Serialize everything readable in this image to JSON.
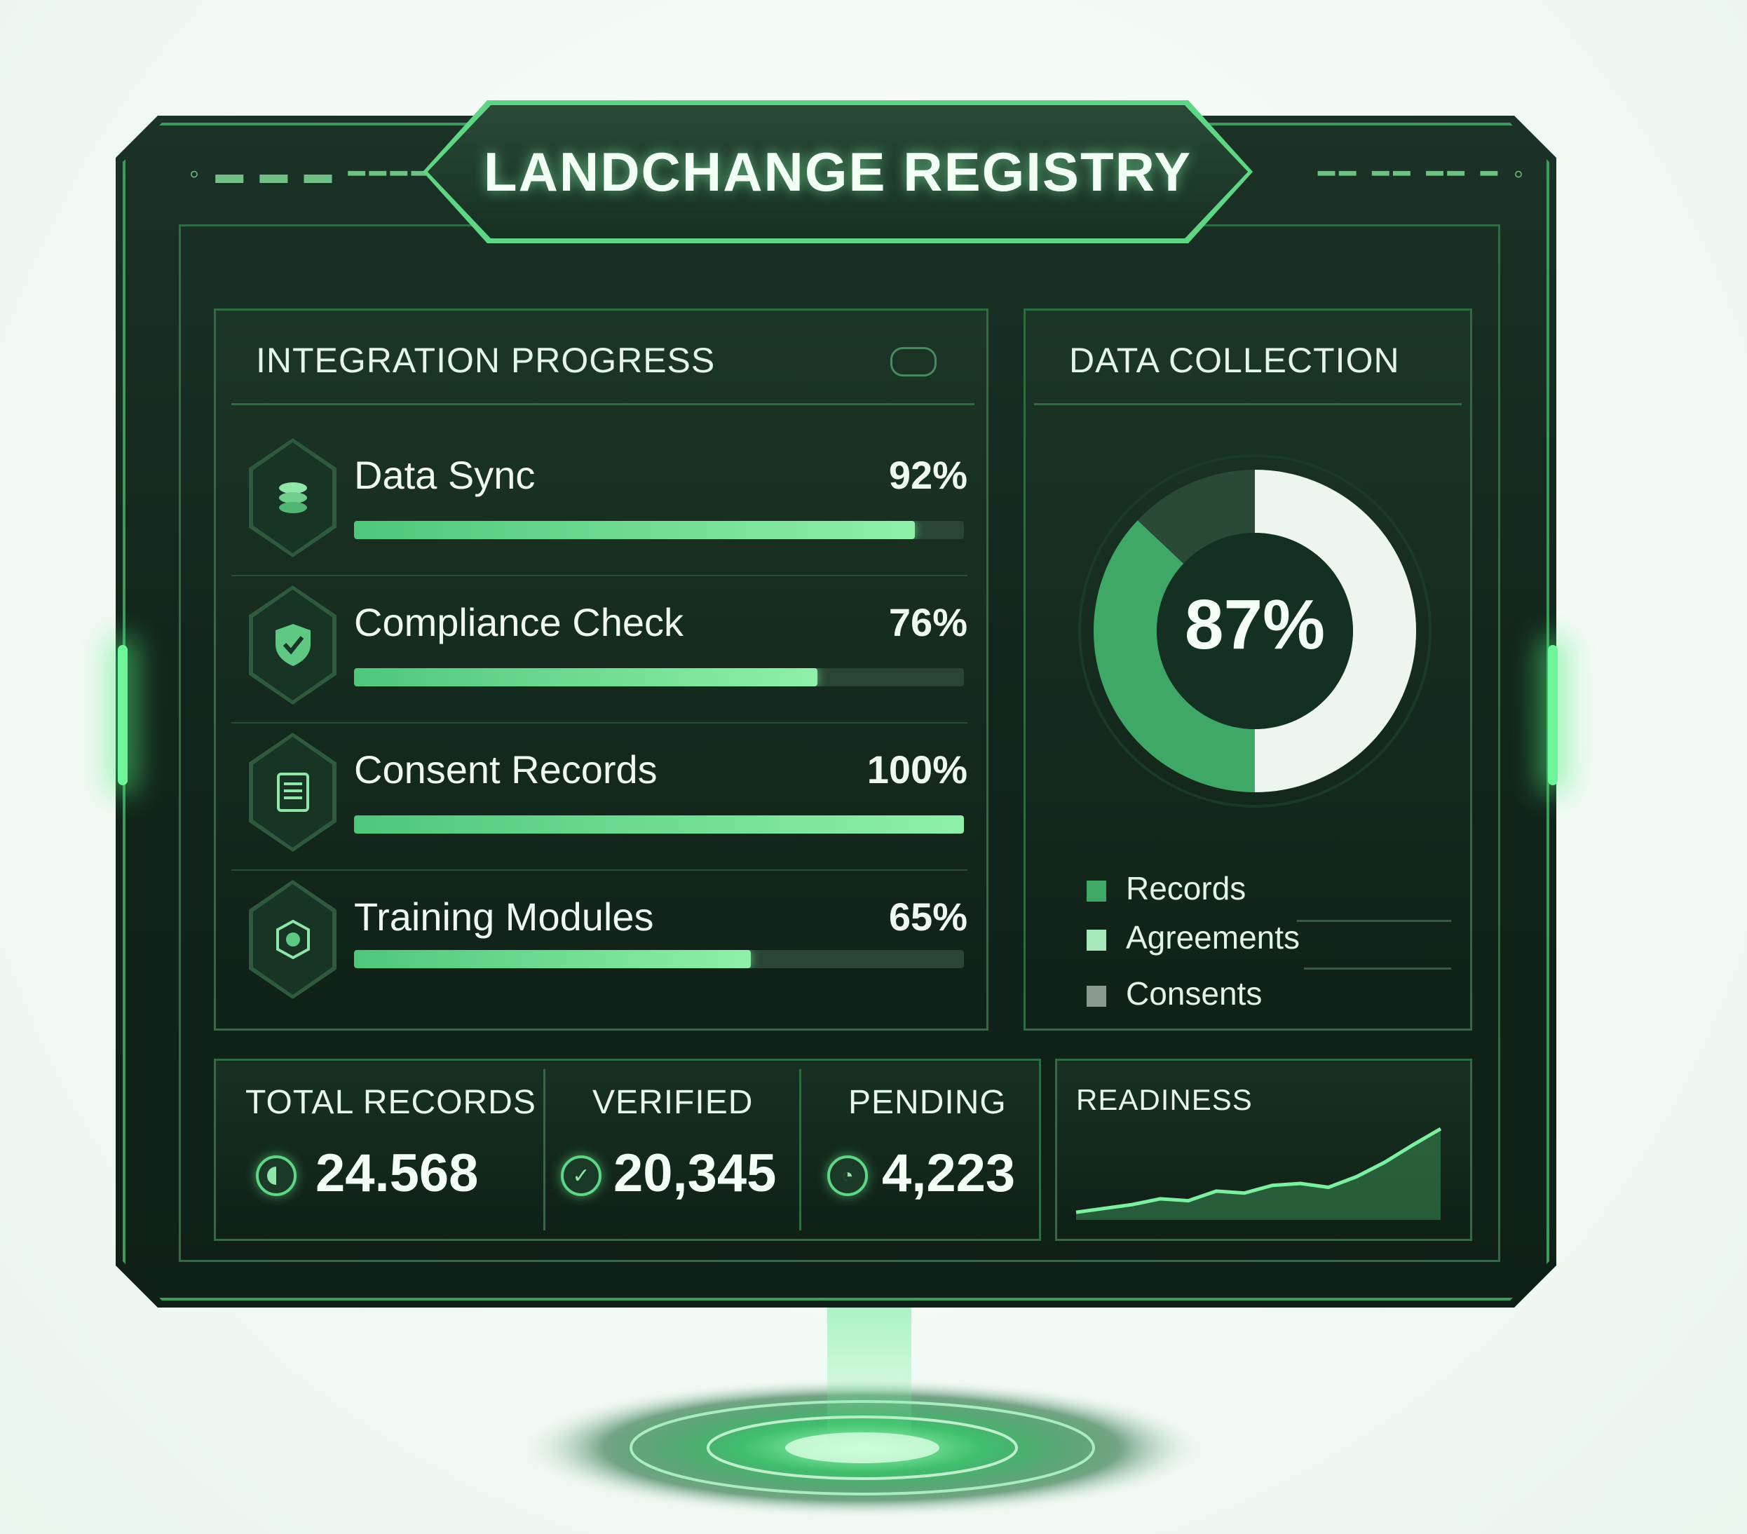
{
  "app": {
    "title": "LANDCHANGE REGISTRY"
  },
  "integration": {
    "title": "INTEGRATION PROGRESS",
    "items": [
      {
        "label": "Data Sync",
        "percent": 92,
        "percent_label": "92%",
        "icon": "layers-icon"
      },
      {
        "label": "Compliance Check",
        "percent": 76,
        "percent_label": "76%",
        "icon": "shield-check-icon"
      },
      {
        "label": "Consent Records",
        "percent": 100,
        "percent_label": "100%",
        "icon": "document-icon"
      },
      {
        "label": "Training Modules",
        "percent": 65,
        "percent_label": "65%",
        "icon": "badge-icon"
      }
    ]
  },
  "collection": {
    "title": "DATA COLLECTION",
    "center_label": "87%",
    "legend": [
      {
        "label": "Records",
        "color": "#3fa866"
      },
      {
        "label": "Agreements",
        "color": "#a7e8ba"
      },
      {
        "label": "Consents",
        "color": "#8a9a8f"
      }
    ],
    "donut_percent": 87
  },
  "stats": {
    "total": {
      "title": "TOTAL RECORDS",
      "value": "24.568",
      "icon": "circle-half-icon"
    },
    "verified": {
      "title": "VERIFIED",
      "value": "20,345",
      "icon": "check-circle-icon"
    },
    "pending": {
      "title": "PENDING",
      "value": "4,223",
      "icon": "clock-icon"
    }
  },
  "readiness": {
    "title": "READINESS",
    "trend": [
      8,
      12,
      16,
      22,
      20,
      30,
      28,
      36,
      38,
      34,
      45,
      60,
      78,
      95
    ]
  },
  "colors": {
    "accent": "#5fd586",
    "panel": "#13261b",
    "border": "#2f6b43"
  }
}
